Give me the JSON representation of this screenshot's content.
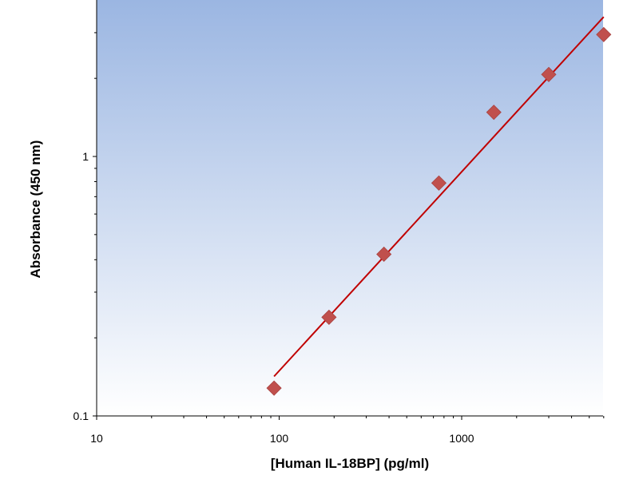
{
  "chart_data": {
    "type": "scatter",
    "title": "",
    "xlabel": "[Human IL-18BP] (pg/ml)",
    "ylabel": "Absorbance (450 nm)",
    "x_scale": "log",
    "y_scale": "log",
    "xlim": [
      10,
      6000
    ],
    "ylim": [
      0.1,
      3.8
    ],
    "x_ticks": [
      {
        "value": 10,
        "label": "10"
      },
      {
        "value": 100,
        "label": "100"
      },
      {
        "value": 1000,
        "label": "1000"
      }
    ],
    "y_ticks": [
      {
        "value": 0.1,
        "label": "0.1"
      },
      {
        "value": 1,
        "label": "1"
      }
    ],
    "grid": false,
    "legend": "none",
    "colors": {
      "plot_bg_top": "#9bb6e2",
      "plot_bg_bottom": "#ffffff",
      "marker": "#c0504d",
      "line": "#c00000"
    },
    "series": [
      {
        "type": "scatter",
        "marker": "diamond",
        "x": [
          93.75,
          187.5,
          375,
          750,
          1500,
          3000,
          6000
        ],
        "y": [
          0.128,
          0.24,
          0.42,
          0.79,
          1.48,
          2.07,
          2.95
        ]
      },
      {
        "type": "line",
        "x": [
          93.75,
          6000
        ],
        "y": [
          0.142,
          3.45
        ]
      }
    ]
  }
}
